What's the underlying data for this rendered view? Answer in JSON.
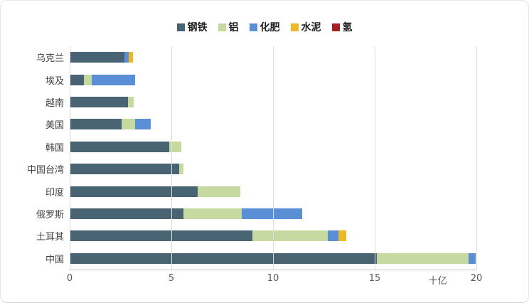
{
  "chart_data": {
    "type": "bar",
    "orientation": "horizontal",
    "stacked": true,
    "title": "",
    "xlabel": "十亿",
    "ylabel": "",
    "xlim": [
      0,
      20
    ],
    "x_ticks": [
      0,
      5,
      10,
      15,
      20
    ],
    "grid": true,
    "legend_position": "top",
    "categories": [
      "乌克兰",
      "埃及",
      "越南",
      "美国",
      "韩国",
      "中国台湾",
      "印度",
      "俄罗斯",
      "土耳其",
      "中国"
    ],
    "series": [
      {
        "name": "钢铁",
        "key": "steel",
        "color": "#486472",
        "values": [
          2.7,
          0.7,
          2.85,
          2.55,
          4.9,
          5.4,
          6.3,
          5.6,
          9.0,
          15.1
        ]
      },
      {
        "name": "铝",
        "key": "aluminum",
        "color": "#C6D9A0",
        "values": [
          0,
          0.4,
          0.3,
          0.65,
          0.6,
          0.2,
          2.1,
          2.85,
          3.7,
          4.5
        ]
      },
      {
        "name": "化肥",
        "key": "fertilizer",
        "color": "#5B8FD5",
        "values": [
          0.2,
          2.1,
          0,
          0.8,
          0,
          0,
          0,
          3.0,
          0.5,
          0.35
        ]
      },
      {
        "name": "水泥",
        "key": "cement",
        "color": "#EDB827",
        "values": [
          0.2,
          0,
          0,
          0,
          0,
          0,
          0,
          0,
          0.4,
          0
        ]
      },
      {
        "name": "氢",
        "key": "hydrogen",
        "color": "#A91E22",
        "values": [
          0,
          0,
          0,
          0,
          0,
          0,
          0,
          0,
          0,
          0
        ]
      }
    ],
    "colors": {
      "grid": "#dcdcdc",
      "axis_line": "#c6c6c6",
      "tick_text": "#595959",
      "category_text": "#404040",
      "legend_text": "#1f1f1f"
    }
  }
}
